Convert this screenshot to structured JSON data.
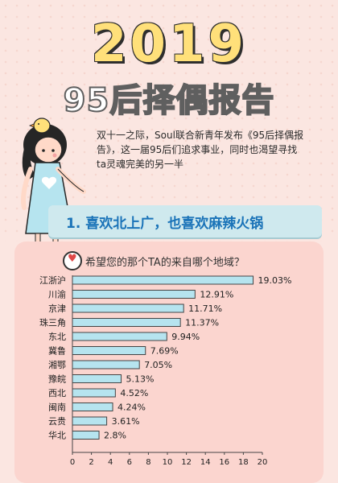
{
  "header": {
    "year": "2019",
    "title": "95后择偶报告"
  },
  "intro": {
    "text": "双十一之际，Soul联合新青年发布《95后择偶报告》，这一届95后们追求事业，同时也渴望寻找ta灵魂完美的另一半"
  },
  "section": {
    "heading": "1. 喜欢北上广，也喜欢麻辣火锅"
  },
  "chart_data": {
    "type": "bar",
    "orientation": "horizontal",
    "title": "希望您的那个TA的来自哪个地域？",
    "categories": [
      "江浙沪",
      "川渝",
      "京津",
      "珠三角",
      "东北",
      "冀鲁",
      "湘鄂",
      "豫皖",
      "西北",
      "闽南",
      "云贵",
      "华北"
    ],
    "values": [
      19.03,
      12.91,
      11.71,
      11.37,
      9.94,
      7.69,
      7.05,
      5.13,
      4.52,
      4.24,
      3.61,
      2.8
    ],
    "value_labels": [
      "19.03%",
      "12.91%",
      "11.71%",
      "11.37%",
      "9.94%",
      "7.69%",
      "7.05%",
      "5.13%",
      "4.52%",
      "4.24%",
      "3.61%",
      "2.8%"
    ],
    "x_ticks": [
      0,
      2,
      4,
      6,
      8,
      10,
      12,
      14,
      16,
      18,
      20
    ],
    "xlim": [
      0,
      20
    ],
    "grid": false,
    "colors": {
      "bar": "#b6e4ef",
      "bar_border": "#444444"
    }
  }
}
